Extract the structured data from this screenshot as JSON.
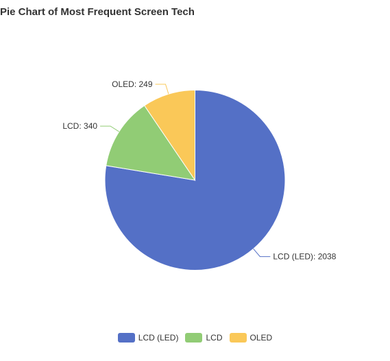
{
  "chart_data": {
    "type": "pie",
    "title": "Pie Chart of Most Frequent Screen Tech",
    "categories": [
      "LCD (LED)",
      "LCD",
      "OLED"
    ],
    "values": [
      2038,
      340,
      249
    ],
    "colors": [
      "#5470c6",
      "#91cc75",
      "#fac858"
    ],
    "data_labels": [
      "LCD (LED): 2038",
      "LCD: 340",
      "OLED: 249"
    ],
    "legend_position": "bottom-center"
  }
}
